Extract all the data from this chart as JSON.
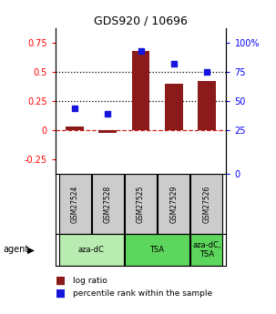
{
  "title": "GDS920 / 10696",
  "samples": [
    "GSM27524",
    "GSM27528",
    "GSM27525",
    "GSM27529",
    "GSM27526"
  ],
  "log_ratio": [
    0.03,
    -0.02,
    0.68,
    0.4,
    0.42
  ],
  "percentile_rank": [
    0.5,
    0.46,
    0.94,
    0.84,
    0.78
  ],
  "ylim_left": [
    -0.375,
    0.875
  ],
  "yticks_left": [
    -0.25,
    0.0,
    0.25,
    0.5,
    0.75
  ],
  "ytick_labels_left": [
    "-0.25",
    "0",
    "0.25",
    "0.5",
    "0.75"
  ],
  "ylim_right": [
    -0.375,
    0.875
  ],
  "yticks_right": [
    -0.375,
    0.0,
    0.25,
    0.5,
    0.75
  ],
  "ytick_labels_right": [
    "0",
    "25",
    "50",
    "75",
    "100%"
  ],
  "hlines": [
    0.25,
    0.5
  ],
  "bar_color": "#8B1A1A",
  "dot_color": "#1515dd",
  "bar_width": 0.55,
  "sample_bg_color": "#cccccc",
  "agent_groups": [
    {
      "label": "aza-dC",
      "start": 0,
      "end": 1,
      "color": "#b8ecb0"
    },
    {
      "label": "TSA",
      "start": 2,
      "end": 3,
      "color": "#5cd65c"
    },
    {
      "label": "aza-dC,\nTSA",
      "start": 4,
      "end": 4,
      "color": "#5cd65c"
    }
  ],
  "legend_bar_label": "log ratio",
  "legend_dot_label": "percentile rank within the sample"
}
